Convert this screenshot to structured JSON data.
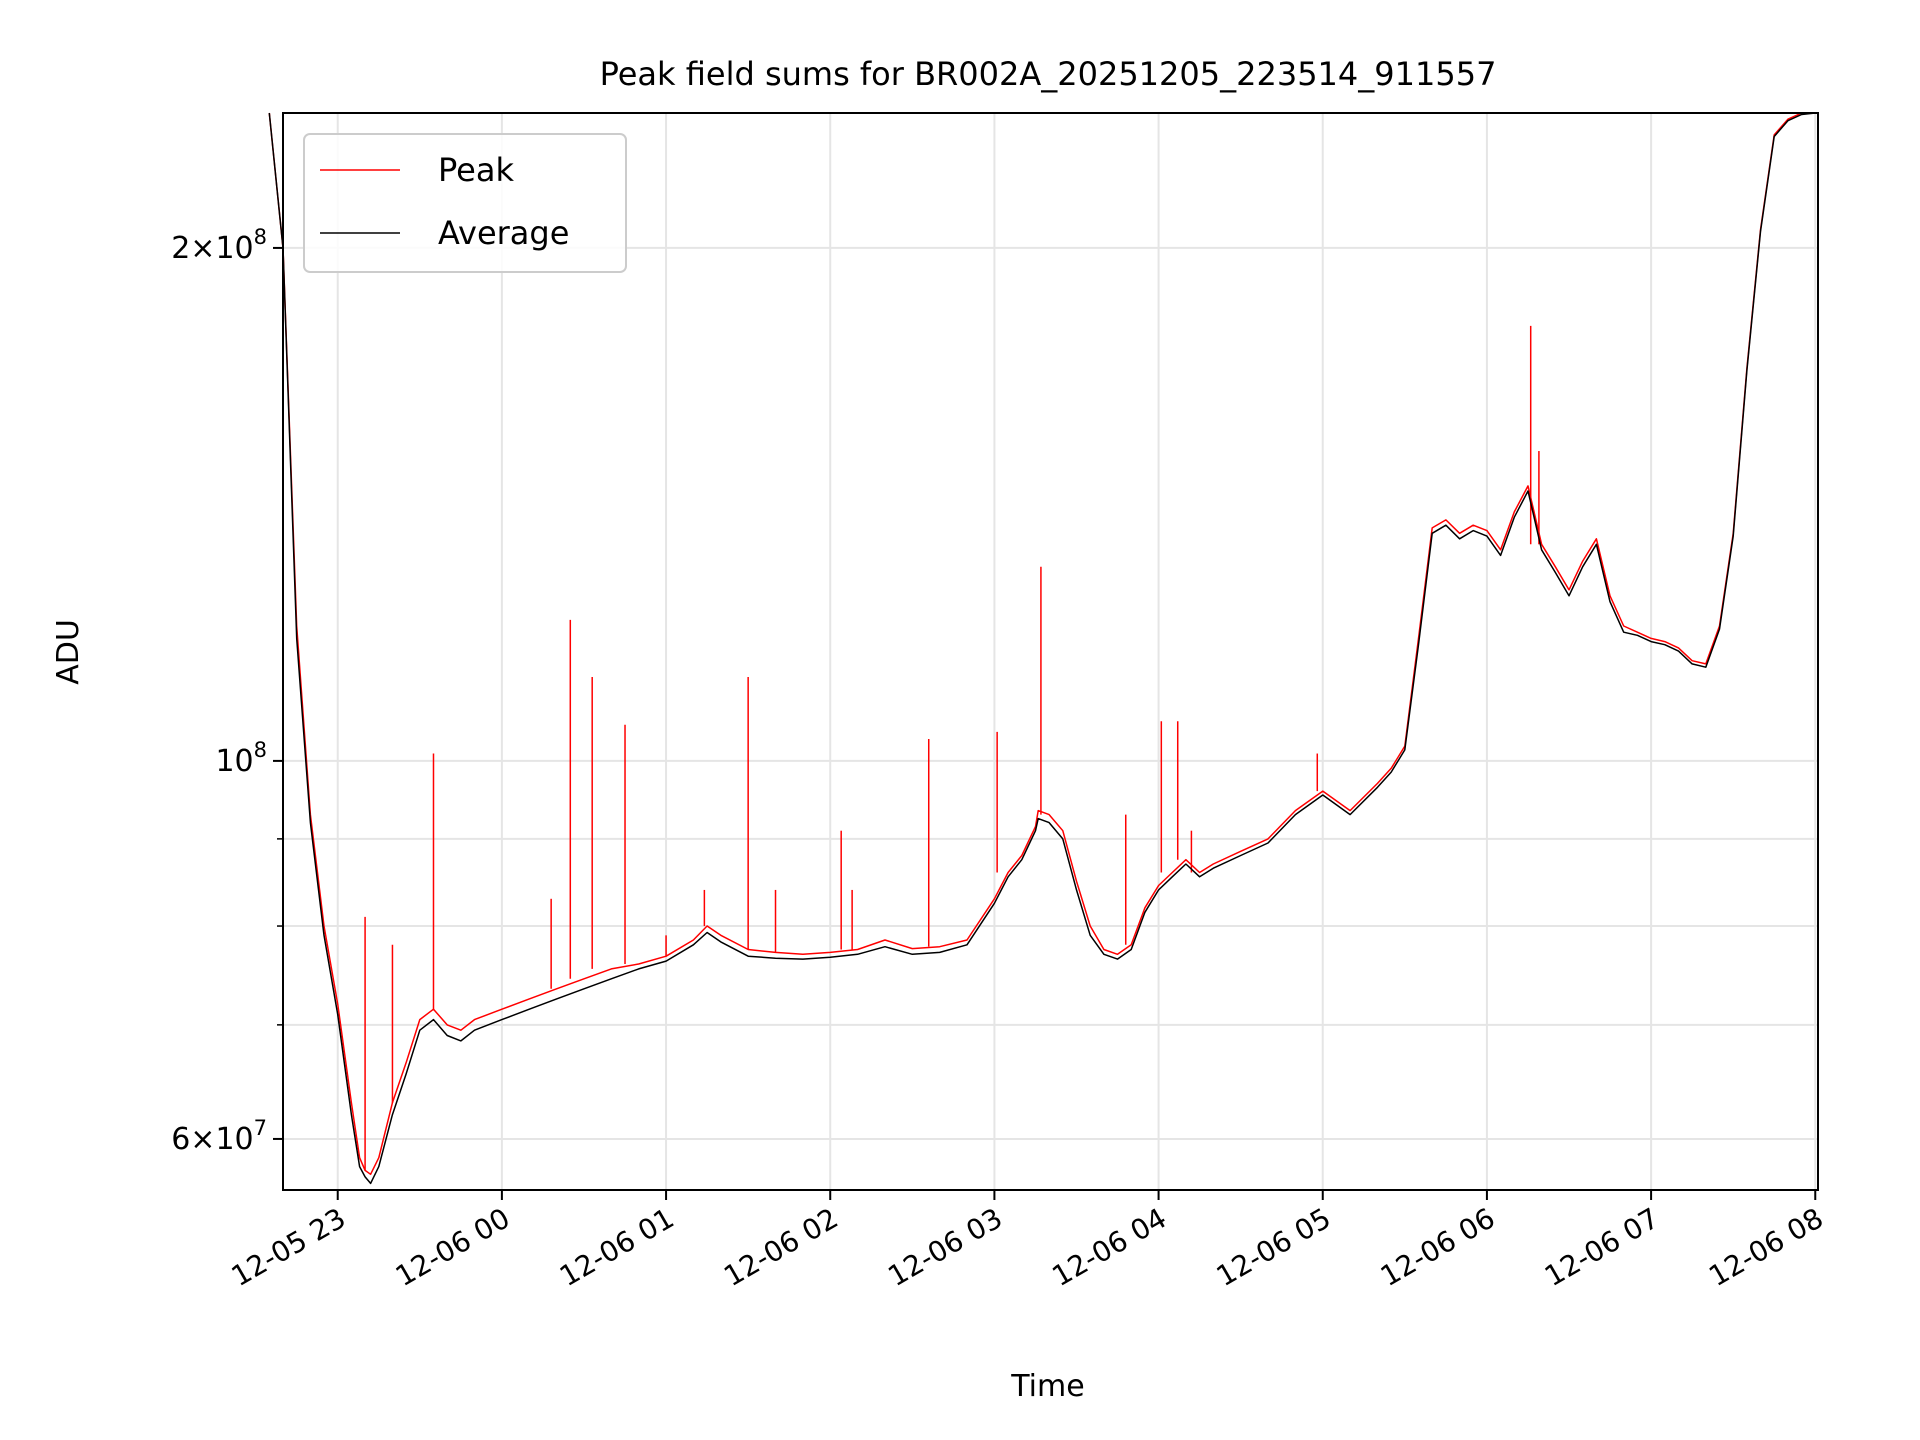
{
  "chart_data": {
    "type": "line",
    "title": "Peak field sums for BR002A_20251205_223514_911557",
    "xlabel": "Time",
    "ylabel": "ADU",
    "yscale": "log",
    "ylim": [
      56000000,
      240000000
    ],
    "xlim": [
      "2025-12-05 22:40",
      "2025-12-06 08:01"
    ],
    "x_tick_labels": [
      "12-05 23",
      "12-06 00",
      "12-06 01",
      "12-06 02",
      "12-06 03",
      "12-06 04",
      "12-06 05",
      "12-06 06",
      "12-06 07",
      "12-06 08"
    ],
    "x_ticks": [
      "2025-12-05 23:00",
      "2025-12-06 00:00",
      "2025-12-06 01:00",
      "2025-12-06 02:00",
      "2025-12-06 03:00",
      "2025-12-06 04:00",
      "2025-12-06 05:00",
      "2025-12-06 06:00",
      "2025-12-06 07:00",
      "2025-12-06 08:00"
    ],
    "y_ticks": [
      {
        "value": 200000000,
        "mantissa": "2",
        "exponent": "8"
      },
      {
        "value": 100000000,
        "mantissa": "",
        "exponent": "8"
      },
      {
        "value": 60000000,
        "mantissa": "6",
        "exponent": "7"
      }
    ],
    "y_minor_ticks": [
      70000000,
      80000000,
      90000000
    ],
    "grid": true,
    "legend_position": "top-left",
    "series": [
      {
        "name": "Peak",
        "color": "#ff0000",
        "x": [
          "2025-12-05 22:35",
          "2025-12-05 22:40",
          "2025-12-05 22:45",
          "2025-12-05 22:50",
          "2025-12-05 22:55",
          "2025-12-05 23:00",
          "2025-12-05 23:05",
          "2025-12-05 23:08",
          "2025-12-05 23:10",
          "2025-12-05 23:12",
          "2025-12-05 23:15",
          "2025-12-05 23:20",
          "2025-12-05 23:25",
          "2025-12-05 23:30",
          "2025-12-05 23:35",
          "2025-12-05 23:40",
          "2025-12-05 23:45",
          "2025-12-05 23:50",
          "2025-12-06 00:00",
          "2025-12-06 00:10",
          "2025-12-06 00:20",
          "2025-12-06 00:30",
          "2025-12-06 00:40",
          "2025-12-06 00:50",
          "2025-12-06 01:00",
          "2025-12-06 01:10",
          "2025-12-06 01:15",
          "2025-12-06 01:20",
          "2025-12-06 01:30",
          "2025-12-06 01:40",
          "2025-12-06 01:50",
          "2025-12-06 02:00",
          "2025-12-06 02:10",
          "2025-12-06 02:20",
          "2025-12-06 02:30",
          "2025-12-06 02:40",
          "2025-12-06 02:50",
          "2025-12-06 03:00",
          "2025-12-06 03:05",
          "2025-12-06 03:10",
          "2025-12-06 03:15",
          "2025-12-06 03:16",
          "2025-12-06 03:20",
          "2025-12-06 03:25",
          "2025-12-06 03:30",
          "2025-12-06 03:35",
          "2025-12-06 03:40",
          "2025-12-06 03:45",
          "2025-12-06 03:50",
          "2025-12-06 03:55",
          "2025-12-06 04:00",
          "2025-12-06 04:05",
          "2025-12-06 04:10",
          "2025-12-06 04:15",
          "2025-12-06 04:20",
          "2025-12-06 04:30",
          "2025-12-06 04:40",
          "2025-12-06 04:50",
          "2025-12-06 05:00",
          "2025-12-06 05:10",
          "2025-12-06 05:20",
          "2025-12-06 05:25",
          "2025-12-06 05:30",
          "2025-12-06 05:35",
          "2025-12-06 05:40",
          "2025-12-06 05:45",
          "2025-12-06 05:50",
          "2025-12-06 05:55",
          "2025-12-06 06:00",
          "2025-12-06 06:05",
          "2025-12-06 06:10",
          "2025-12-06 06:15",
          "2025-12-06 06:20",
          "2025-12-06 06:25",
          "2025-12-06 06:30",
          "2025-12-06 06:35",
          "2025-12-06 06:40",
          "2025-12-06 06:45",
          "2025-12-06 06:50",
          "2025-12-06 06:55",
          "2025-12-06 07:00",
          "2025-12-06 07:05",
          "2025-12-06 07:10",
          "2025-12-06 07:15",
          "2025-12-06 07:20",
          "2025-12-06 07:25",
          "2025-12-06 07:30",
          "2025-12-06 07:35",
          "2025-12-06 07:40",
          "2025-12-06 07:45",
          "2025-12-06 07:50",
          "2025-12-06 07:55",
          "2025-12-06 08:00"
        ],
        "y": [
          240000000,
          200000000,
          120000000,
          93000000,
          80000000,
          72000000,
          63000000,
          58500000,
          57500000,
          57200000,
          58500000,
          63000000,
          66500000,
          70500000,
          71500000,
          70000000,
          69500000,
          70500000,
          71500000,
          72500000,
          73500000,
          74500000,
          75500000,
          76000000,
          76800000,
          78500000,
          80000000,
          79000000,
          77500000,
          77200000,
          77000000,
          77200000,
          77500000,
          78500000,
          77600000,
          77800000,
          78500000,
          83000000,
          86000000,
          88000000,
          91500000,
          93500000,
          93000000,
          91000000,
          85000000,
          80000000,
          77500000,
          77000000,
          78000000,
          82000000,
          84500000,
          86000000,
          87500000,
          86000000,
          87000000,
          88500000,
          90000000,
          93500000,
          96000000,
          93500000,
          97000000,
          99000000,
          102000000,
          118000000,
          137000000,
          138500000,
          136000000,
          137500000,
          136500000,
          133000000,
          140000000,
          145000000,
          134000000,
          130000000,
          126000000,
          131000000,
          135000000,
          125000000,
          120000000,
          119000000,
          118000000,
          117500000,
          116500000,
          114500000,
          114000000,
          120000000,
          136000000,
          170000000,
          205000000,
          233000000,
          238000000,
          240000000,
          241000000
        ],
        "spikes": [
          {
            "x": "2025-12-05 23:10",
            "y": 81000000
          },
          {
            "x": "2025-12-05 23:20",
            "y": 78000000
          },
          {
            "x": "2025-12-05 23:35",
            "y": 101000000
          },
          {
            "x": "2025-12-06 00:18",
            "y": 83000000
          },
          {
            "x": "2025-12-06 00:25",
            "y": 121000000
          },
          {
            "x": "2025-12-06 00:33",
            "y": 112000000
          },
          {
            "x": "2025-12-06 00:45",
            "y": 105000000
          },
          {
            "x": "2025-12-06 01:00",
            "y": 79000000
          },
          {
            "x": "2025-12-06 01:14",
            "y": 84000000
          },
          {
            "x": "2025-12-06 01:30",
            "y": 112000000
          },
          {
            "x": "2025-12-06 01:40",
            "y": 84000000
          },
          {
            "x": "2025-12-06 02:04",
            "y": 91000000
          },
          {
            "x": "2025-12-06 02:08",
            "y": 84000000
          },
          {
            "x": "2025-12-06 02:36",
            "y": 103000000
          },
          {
            "x": "2025-12-06 03:01",
            "y": 104000000
          },
          {
            "x": "2025-12-06 03:17",
            "y": 130000000
          },
          {
            "x": "2025-12-06 03:48",
            "y": 93000000
          },
          {
            "x": "2025-12-06 04:01",
            "y": 105500000
          },
          {
            "x": "2025-12-06 04:07",
            "y": 105500000
          },
          {
            "x": "2025-12-06 04:12",
            "y": 91000000
          },
          {
            "x": "2025-12-06 04:58",
            "y": 101000000
          },
          {
            "x": "2025-12-06 06:16",
            "y": 180000000
          },
          {
            "x": "2025-12-06 06:19",
            "y": 152000000
          }
        ]
      },
      {
        "name": "Average",
        "color": "#000000",
        "x": [
          "2025-12-05 22:35",
          "2025-12-05 22:40",
          "2025-12-05 22:45",
          "2025-12-05 22:50",
          "2025-12-05 22:55",
          "2025-12-05 23:00",
          "2025-12-05 23:05",
          "2025-12-05 23:08",
          "2025-12-05 23:10",
          "2025-12-05 23:12",
          "2025-12-05 23:15",
          "2025-12-05 23:20",
          "2025-12-05 23:25",
          "2025-12-05 23:30",
          "2025-12-05 23:35",
          "2025-12-05 23:40",
          "2025-12-05 23:45",
          "2025-12-05 23:50",
          "2025-12-06 00:00",
          "2025-12-06 00:10",
          "2025-12-06 00:20",
          "2025-12-06 00:30",
          "2025-12-06 00:40",
          "2025-12-06 00:50",
          "2025-12-06 01:00",
          "2025-12-06 01:10",
          "2025-12-06 01:15",
          "2025-12-06 01:20",
          "2025-12-06 01:30",
          "2025-12-06 01:40",
          "2025-12-06 01:50",
          "2025-12-06 02:00",
          "2025-12-06 02:10",
          "2025-12-06 02:20",
          "2025-12-06 02:30",
          "2025-12-06 02:40",
          "2025-12-06 02:50",
          "2025-12-06 03:00",
          "2025-12-06 03:05",
          "2025-12-06 03:10",
          "2025-12-06 03:15",
          "2025-12-06 03:16",
          "2025-12-06 03:20",
          "2025-12-06 03:25",
          "2025-12-06 03:30",
          "2025-12-06 03:35",
          "2025-12-06 03:40",
          "2025-12-06 03:45",
          "2025-12-06 03:50",
          "2025-12-06 03:55",
          "2025-12-06 04:00",
          "2025-12-06 04:05",
          "2025-12-06 04:10",
          "2025-12-06 04:15",
          "2025-12-06 04:20",
          "2025-12-06 04:30",
          "2025-12-06 04:40",
          "2025-12-06 04:50",
          "2025-12-06 05:00",
          "2025-12-06 05:10",
          "2025-12-06 05:20",
          "2025-12-06 05:25",
          "2025-12-06 05:30",
          "2025-12-06 05:35",
          "2025-12-06 05:40",
          "2025-12-06 05:45",
          "2025-12-06 05:50",
          "2025-12-06 05:55",
          "2025-12-06 06:00",
          "2025-12-06 06:05",
          "2025-12-06 06:10",
          "2025-12-06 06:15",
          "2025-12-06 06:20",
          "2025-12-06 06:25",
          "2025-12-06 06:30",
          "2025-12-06 06:35",
          "2025-12-06 06:40",
          "2025-12-06 06:45",
          "2025-12-06 06:50",
          "2025-12-06 06:55",
          "2025-12-06 07:00",
          "2025-12-06 07:05",
          "2025-12-06 07:10",
          "2025-12-06 07:15",
          "2025-12-06 07:20",
          "2025-12-06 07:25",
          "2025-12-06 07:30",
          "2025-12-06 07:35",
          "2025-12-06 07:40",
          "2025-12-06 07:45",
          "2025-12-06 07:50",
          "2025-12-06 07:55",
          "2025-12-06 08:00"
        ],
        "y": [
          240000000,
          200000000,
          118000000,
          92000000,
          79000000,
          71000000,
          62000000,
          57800000,
          57000000,
          56500000,
          57800000,
          62000000,
          65500000,
          69500000,
          70500000,
          69000000,
          68500000,
          69500000,
          70500000,
          71500000,
          72500000,
          73500000,
          74500000,
          75500000,
          76300000,
          78000000,
          79300000,
          78300000,
          76800000,
          76600000,
          76500000,
          76700000,
          77000000,
          77800000,
          77000000,
          77200000,
          78000000,
          82500000,
          85500000,
          87500000,
          91000000,
          92500000,
          92000000,
          90000000,
          84000000,
          79000000,
          77000000,
          76500000,
          77500000,
          81500000,
          84000000,
          85500000,
          87000000,
          85500000,
          86500000,
          88000000,
          89500000,
          93000000,
          95500000,
          93000000,
          96500000,
          98500000,
          101500000,
          117000000,
          136000000,
          137500000,
          135000000,
          136500000,
          135500000,
          132000000,
          139000000,
          144000000,
          133000000,
          129000000,
          125000000,
          130000000,
          134000000,
          124000000,
          119000000,
          118500000,
          117500000,
          117000000,
          116000000,
          114000000,
          113500000,
          119500000,
          135500000,
          169500000,
          204500000,
          232500000,
          237500000,
          239500000,
          241000000
        ]
      }
    ]
  }
}
